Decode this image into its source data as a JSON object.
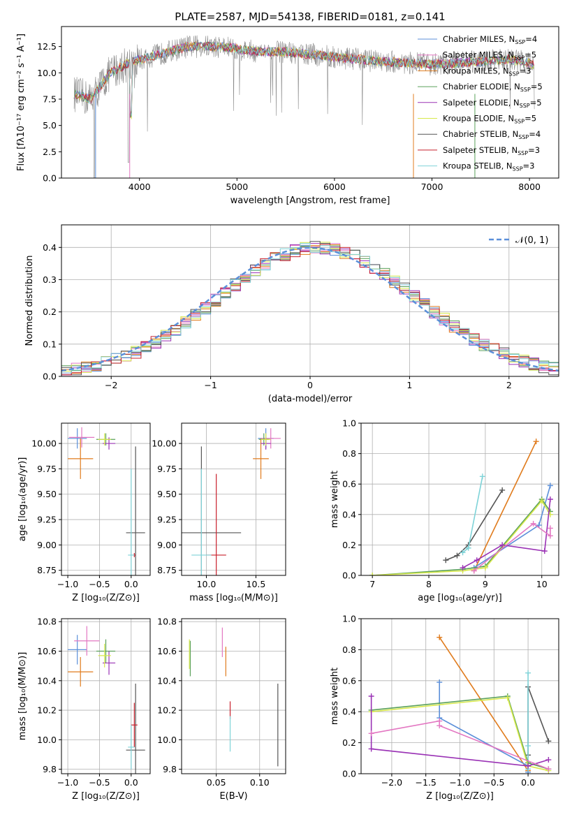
{
  "colors": {
    "chabrier_miles": "#5b8fd9",
    "salpeter_miles": "#e377c2",
    "kroupa_miles": "#e07b1c",
    "chabrier_elodie": "#5aa05a",
    "salpeter_elodie": "#9a32b5",
    "kroupa_elodie": "#d7e84a",
    "chabrier_stelib": "#555555",
    "salpeter_stelib": "#c8202c",
    "kroupa_stelib": "#7fd3d8",
    "data_grey": "#8a8a8a",
    "normal": "#5b8fd9",
    "grid": "#b0b0b0"
  },
  "chart_data": [
    {
      "id": "spectrum",
      "type": "line",
      "title": "PLATE=2587, MJD=54138, FIBERID=0181, z=0.141",
      "xlabel": "wavelength [Angstrom, rest frame]",
      "ylabel": "Flux [fλ10⁻¹⁷ erg cm⁻² s⁻¹ A⁻¹]",
      "xlim": [
        3200,
        8300
      ],
      "ylim": [
        0,
        14.4
      ],
      "xticks": [
        4000,
        5000,
        6000,
        7000,
        8000
      ],
      "yticks": [
        0.0,
        2.5,
        5.0,
        7.5,
        10.0,
        12.5
      ],
      "xtick_labels": [
        "4000",
        "5000",
        "6000",
        "7000",
        "8000"
      ],
      "ytick_labels": [
        "0.0",
        "2.5",
        "5.0",
        "7.5",
        "10.0",
        "12.5"
      ],
      "legend_position": "top-right",
      "continuum": [
        [
          3330,
          8.0
        ],
        [
          3500,
          7.5
        ],
        [
          3700,
          10.0
        ],
        [
          3900,
          11.0
        ],
        [
          4100,
          11.5
        ],
        [
          4300,
          12.0
        ],
        [
          4500,
          12.5
        ],
        [
          4800,
          12.5
        ],
        [
          5000,
          12.3
        ],
        [
          5200,
          12.0
        ],
        [
          5500,
          12.0
        ],
        [
          5800,
          11.7
        ],
        [
          6200,
          11.3
        ],
        [
          6600,
          11.0
        ],
        [
          7000,
          10.8
        ],
        [
          7400,
          11.0
        ],
        [
          7800,
          11.3
        ],
        [
          8050,
          10.8
        ]
      ],
      "legend": [
        {
          "label": "Chabrier MILES, N",
          "sub": "SSP",
          "suffix": "=4",
          "color_key": "chabrier_miles"
        },
        {
          "label": "Salpeter MILES, N",
          "sub": "SSP",
          "suffix": "=5",
          "color_key": "salpeter_miles"
        },
        {
          "label": "Kroupa MILES, N",
          "sub": "SSP",
          "suffix": "=3",
          "color_key": "kroupa_miles"
        },
        {
          "label": "Chabrier ELODIE, N",
          "sub": "SSP",
          "suffix": "=5",
          "color_key": "chabrier_elodie"
        },
        {
          "label": "Salpeter ELODIE, N",
          "sub": "SSP",
          "suffix": "=5",
          "color_key": "salpeter_elodie"
        },
        {
          "label": "Kroupa ELODIE, N",
          "sub": "SSP",
          "suffix": "=5",
          "color_key": "kroupa_elodie"
        },
        {
          "label": "Chabrier STELIB, N",
          "sub": "SSP",
          "suffix": "=4",
          "color_key": "chabrier_stelib"
        },
        {
          "label": "Salpeter STELIB, N",
          "sub": "SSP",
          "suffix": "=3",
          "color_key": "salpeter_stelib"
        },
        {
          "label": "Kroupa STELIB, N",
          "sub": "SSP",
          "suffix": "=3",
          "color_key": "kroupa_stelib"
        }
      ]
    },
    {
      "id": "residuals",
      "type": "line",
      "xlabel": "(data-model)/error",
      "ylabel": "Normed distribution",
      "xlim": [
        -2.5,
        2.5
      ],
      "ylim": [
        0,
        0.47
      ],
      "xticks": [
        -2,
        -1,
        0,
        1,
        2
      ],
      "yticks": [
        0.0,
        0.1,
        0.2,
        0.3,
        0.4
      ],
      "xtick_labels": [
        "−2",
        "−1",
        "0",
        "1",
        "2"
      ],
      "ytick_labels": [
        "0.0",
        "0.1",
        "0.2",
        "0.3",
        "0.4"
      ],
      "grid": true,
      "legend_label": "𝒩(0, 1)",
      "legend_position": "top-right"
    },
    {
      "id": "age_vs_Z",
      "type": "scatter",
      "xlabel": "Z [log₁₀(Z/Z⊙)]",
      "ylabel": "age  [log₁₀(age/yr)]",
      "xlim": [
        -1.1,
        0.3
      ],
      "ylim": [
        8.7,
        10.2
      ],
      "xticks": [
        -1.0,
        -0.5,
        0.0
      ],
      "yticks": [
        8.75,
        9.0,
        9.25,
        9.5,
        9.75,
        10.0
      ],
      "xtick_labels": [
        "−1.0",
        "−0.5",
        "0.0"
      ],
      "ytick_labels": [
        "8.75",
        "9.00",
        "9.25",
        "9.50",
        "9.75",
        "10.00"
      ],
      "grid": true,
      "points": [
        {
          "c": "chabrier_miles",
          "x": -0.85,
          "xerr": 0.15,
          "y": 10.05,
          "yerr": 0.1
        },
        {
          "c": "salpeter_miles",
          "x": -0.78,
          "xerr": 0.2,
          "y": 10.06,
          "yerr": 0.1
        },
        {
          "c": "kroupa_miles",
          "x": -0.8,
          "xerr": 0.2,
          "y": 9.85,
          "yerr": 0.2
        },
        {
          "c": "chabrier_elodie",
          "x": -0.4,
          "xerr": 0.15,
          "y": 10.04,
          "yerr": 0.06
        },
        {
          "c": "salpeter_elodie",
          "x": -0.35,
          "xerr": 0.1,
          "y": 10.0,
          "yerr": 0.06
        },
        {
          "c": "kroupa_elodie",
          "x": -0.42,
          "xerr": 0.1,
          "y": 10.04,
          "yerr": 0.06
        },
        {
          "c": "chabrier_stelib",
          "x": 0.07,
          "xerr": 0.15,
          "y": 9.12,
          "yerr": 0.85
        },
        {
          "c": "salpeter_stelib",
          "x": 0.05,
          "xerr": 0.02,
          "y": 8.9,
          "yerr": 0.02
        },
        {
          "c": "kroupa_stelib",
          "x": 0.0,
          "xerr": 0.05,
          "y": 8.9,
          "yerr": 0.85
        }
      ]
    },
    {
      "id": "age_vs_mass",
      "type": "scatter",
      "xlabel": "mass [log₁₀(M/M⊙)]",
      "ylabel": "",
      "xlim": [
        9.75,
        10.8
      ],
      "ylim": [
        8.7,
        10.2
      ],
      "xticks": [
        10.0,
        10.5
      ],
      "yticks": [
        8.75,
        9.0,
        9.25,
        9.5,
        9.75,
        10.0
      ],
      "xtick_labels": [
        "10.0",
        "10.5"
      ],
      "ytick_labels": [
        "8.75",
        "9.00",
        "9.25",
        "9.50",
        "9.75",
        "10.00"
      ],
      "grid": true,
      "points": [
        {
          "c": "chabrier_miles",
          "x": 10.6,
          "xerr": 0.08,
          "y": 10.05,
          "yerr": 0.1
        },
        {
          "c": "salpeter_miles",
          "x": 10.65,
          "xerr": 0.1,
          "y": 10.05,
          "yerr": 0.1
        },
        {
          "c": "kroupa_miles",
          "x": 10.55,
          "xerr": 0.08,
          "y": 9.85,
          "yerr": 0.2
        },
        {
          "c": "chabrier_elodie",
          "x": 10.58,
          "xerr": 0.05,
          "y": 10.04,
          "yerr": 0.06
        },
        {
          "c": "salpeter_elodie",
          "x": 10.6,
          "xerr": 0.05,
          "y": 10.0,
          "yerr": 0.06
        },
        {
          "c": "kroupa_elodie",
          "x": 10.6,
          "xerr": 0.05,
          "y": 10.04,
          "yerr": 0.06
        },
        {
          "c": "chabrier_stelib",
          "x": 9.95,
          "xerr": 0.4,
          "y": 9.12,
          "yerr": 0.85
        },
        {
          "c": "salpeter_stelib",
          "x": 10.1,
          "xerr": 0.1,
          "y": 8.9,
          "yerr": 0.8
        },
        {
          "c": "kroupa_stelib",
          "x": 9.95,
          "xerr": 0.1,
          "y": 8.9,
          "yerr": 0.85
        }
      ]
    },
    {
      "id": "mass_weight_vs_age",
      "type": "line",
      "xlabel": "age  [log₁₀(age/yr)]",
      "ylabel": "mass weight",
      "xlim": [
        6.8,
        10.3
      ],
      "ylim": [
        0,
        1.0
      ],
      "xticks": [
        7,
        8,
        9,
        10
      ],
      "yticks": [
        0.0,
        0.2,
        0.4,
        0.6,
        0.8,
        1.0
      ],
      "xtick_labels": [
        "7",
        "8",
        "9",
        "10"
      ],
      "ytick_labels": [
        "0.0",
        "0.2",
        "0.4",
        "0.6",
        "0.8",
        "1.0"
      ],
      "grid": true,
      "series": [
        {
          "c": "kroupa_miles",
          "x": [
            8.8,
            9.9
          ],
          "y": [
            0.03,
            0.88
          ]
        },
        {
          "c": "chabrier_stelib",
          "x": [
            8.3,
            8.5,
            8.7,
            9.3
          ],
          "y": [
            0.1,
            0.13,
            0.2,
            0.56
          ]
        },
        {
          "c": "kroupa_stelib",
          "x": [
            8.6,
            8.7,
            8.95
          ],
          "y": [
            0.15,
            0.18,
            0.65
          ]
        },
        {
          "c": "chabrier_miles",
          "x": [
            8.8,
            9.95,
            10.15
          ],
          "y": [
            0.05,
            0.33,
            0.59
          ]
        },
        {
          "c": "chabrier_elodie",
          "x": [
            7.0,
            8.6,
            9.0,
            10.0,
            10.15
          ],
          "y": [
            0.0,
            0.04,
            0.06,
            0.5,
            0.42
          ]
        },
        {
          "c": "kroupa_elodie",
          "x": [
            7.0,
            8.6,
            9.0,
            10.0,
            10.15
          ],
          "y": [
            0.0,
            0.03,
            0.05,
            0.49,
            0.4
          ]
        },
        {
          "c": "salpeter_elodie",
          "x": [
            8.6,
            8.85,
            9.3,
            10.05,
            10.15
          ],
          "y": [
            0.05,
            0.1,
            0.2,
            0.16,
            0.5
          ]
        },
        {
          "c": "salpeter_miles",
          "x": [
            8.8,
            9.85,
            10.15,
            10.15
          ],
          "y": [
            0.03,
            0.34,
            0.26,
            0.31
          ]
        }
      ]
    },
    {
      "id": "mass_vs_Z",
      "type": "scatter",
      "xlabel": "Z [log₁₀(Z/Z⊙)]",
      "ylabel": "mass [log₁₀(M/M⊙)]",
      "xlim": [
        -1.1,
        0.3
      ],
      "ylim": [
        9.77,
        10.82
      ],
      "xticks": [
        -1.0,
        -0.5,
        0.0
      ],
      "yticks": [
        9.8,
        10.0,
        10.2,
        10.4,
        10.6,
        10.8
      ],
      "xtick_labels": [
        "−1.0",
        "−0.5",
        "0.0"
      ],
      "ytick_labels": [
        "9.8",
        "10.0",
        "10.2",
        "10.4",
        "10.6",
        "10.8"
      ],
      "grid": true,
      "points": [
        {
          "c": "chabrier_miles",
          "x": -0.85,
          "xerr": 0.15,
          "y": 10.61,
          "yerr": 0.1
        },
        {
          "c": "salpeter_miles",
          "x": -0.7,
          "xerr": 0.2,
          "y": 10.67,
          "yerr": 0.1
        },
        {
          "c": "kroupa_miles",
          "x": -0.8,
          "xerr": 0.2,
          "y": 10.46,
          "yerr": 0.1
        },
        {
          "c": "chabrier_elodie",
          "x": -0.4,
          "xerr": 0.15,
          "y": 10.6,
          "yerr": 0.08
        },
        {
          "c": "salpeter_elodie",
          "x": -0.35,
          "xerr": 0.1,
          "y": 10.52,
          "yerr": 0.08
        },
        {
          "c": "kroupa_elodie",
          "x": -0.42,
          "xerr": 0.1,
          "y": 10.57,
          "yerr": 0.08
        },
        {
          "c": "chabrier_stelib",
          "x": 0.07,
          "xerr": 0.15,
          "y": 9.93,
          "yerr": 0.45
        },
        {
          "c": "salpeter_stelib",
          "x": 0.05,
          "xerr": 0.05,
          "y": 10.1,
          "yerr": 0.15
        },
        {
          "c": "kroupa_stelib",
          "x": 0.0,
          "xerr": 0.05,
          "y": 9.95,
          "yerr": 0.15
        }
      ]
    },
    {
      "id": "mass_vs_ebv",
      "type": "scatter",
      "xlabel": "E(B-V)",
      "ylabel": "",
      "xlim": [
        0.01,
        0.13
      ],
      "ylim": [
        9.77,
        10.82
      ],
      "xticks": [
        0.05,
        0.1
      ],
      "yticks": [
        9.8,
        10.0,
        10.2,
        10.4,
        10.6,
        10.8
      ],
      "xtick_labels": [
        "0.05",
        "0.10"
      ],
      "ytick_labels": [
        "9.8",
        "10.0",
        "10.2",
        "10.4",
        "10.6",
        "10.8"
      ],
      "grid": true,
      "points": [
        {
          "c": "chabrier_elodie",
          "x": 0.02,
          "xerr": 0,
          "y": 10.55,
          "yerr": 0.12
        },
        {
          "c": "kroupa_elodie",
          "x": 0.019,
          "xerr": 0,
          "y": 10.58,
          "yerr": 0.1
        },
        {
          "c": "salpeter_miles",
          "x": 0.057,
          "xerr": 0,
          "y": 10.66,
          "yerr": 0.1
        },
        {
          "c": "kroupa_miles",
          "x": 0.061,
          "xerr": 0,
          "y": 10.53,
          "yerr": 0.1
        },
        {
          "c": "salpeter_stelib",
          "x": 0.066,
          "xerr": 0,
          "y": 10.2,
          "yerr": 0.06
        },
        {
          "c": "kroupa_stelib",
          "x": 0.066,
          "xerr": 0,
          "y": 10.04,
          "yerr": 0.12
        },
        {
          "c": "chabrier_stelib",
          "x": 0.121,
          "xerr": 0,
          "y": 10.1,
          "yerr": 0.28
        }
      ]
    },
    {
      "id": "mass_weight_vs_Z",
      "type": "line",
      "xlabel": "Z [log₁₀(Z/Z⊙)]",
      "ylabel": "mass weight",
      "xlim": [
        -2.45,
        0.45
      ],
      "ylim": [
        0,
        1.0
      ],
      "xticks": [
        -2.0,
        -1.5,
        -1.0,
        -0.5,
        0.0
      ],
      "yticks": [
        0.0,
        0.2,
        0.4,
        0.6,
        0.8,
        1.0
      ],
      "xtick_labels": [
        "−2.0",
        "−1.5",
        "−1.0",
        "−0.5",
        "0.0"
      ],
      "ytick_labels": [
        "0.0",
        "0.2",
        "0.4",
        "0.6",
        "0.8",
        "1.0"
      ],
      "grid": true,
      "series": [
        {
          "c": "kroupa_miles",
          "x": [
            -1.3,
            0.0
          ],
          "y": [
            0.88,
            0.02
          ]
        },
        {
          "c": "chabrier_miles",
          "x": [
            -1.3,
            -1.3,
            0.0,
            0.0
          ],
          "y": [
            0.59,
            0.36,
            0.05,
            0.01
          ]
        },
        {
          "c": "chabrier_stelib",
          "x": [
            0.0,
            0.0,
            0.3
          ],
          "y": [
            0.12,
            0.56,
            0.21
          ]
        },
        {
          "c": "kroupa_stelib",
          "x": [
            0.0,
            0.0,
            0.0
          ],
          "y": [
            0.65,
            0.18,
            0.03
          ]
        },
        {
          "c": "chabrier_elodie",
          "x": [
            -2.3,
            -0.3,
            0.0,
            0.3
          ],
          "y": [
            0.41,
            0.5,
            0.07,
            0.03
          ]
        },
        {
          "c": "kroupa_elodie",
          "x": [
            -2.3,
            -0.3,
            0.0,
            0.3
          ],
          "y": [
            0.4,
            0.49,
            0.05,
            0.02
          ]
        },
        {
          "c": "salpeter_elodie",
          "x": [
            -2.3,
            -2.3,
            0.0,
            0.3
          ],
          "y": [
            0.5,
            0.16,
            0.05,
            0.09
          ]
        },
        {
          "c": "salpeter_miles",
          "x": [
            -2.3,
            -1.3,
            -1.3,
            0.3
          ],
          "y": [
            0.26,
            0.34,
            0.31,
            0.03
          ]
        }
      ]
    }
  ]
}
